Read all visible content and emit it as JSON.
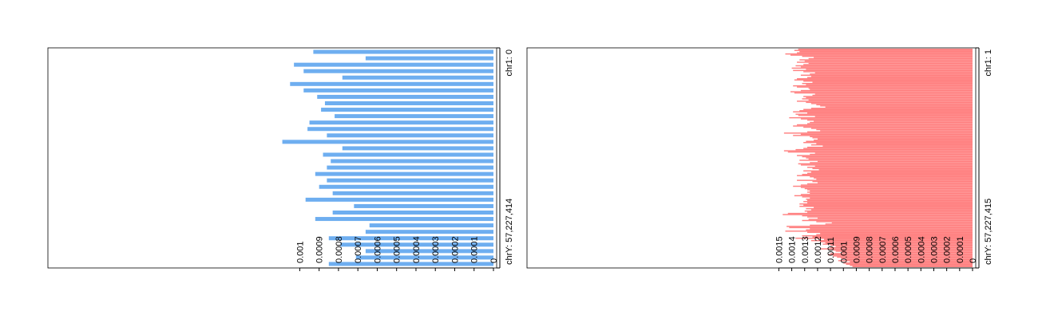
{
  "chart_data": [
    {
      "type": "bar",
      "orientation": "horizontal",
      "color": "#6eaef0",
      "range_labels": {
        "start": "chr1: 0",
        "end": "chrY: 57,227,414"
      },
      "xlim": [
        0,
        0.00108
      ],
      "ticks": [
        {
          "v": 0,
          "label": "0"
        },
        {
          "v": 0.0001,
          "label": "0.0001"
        },
        {
          "v": 0.0002,
          "label": "0.0002"
        },
        {
          "v": 0.0003,
          "label": "0.0003"
        },
        {
          "v": 0.0004,
          "label": "0.0004"
        },
        {
          "v": 0.0005,
          "label": "0.0005"
        },
        {
          "v": 0.0006,
          "label": "0.0006"
        },
        {
          "v": 0.0007,
          "label": "0.0007"
        },
        {
          "v": 0.0008,
          "label": "0.0008"
        },
        {
          "v": 0.0009,
          "label": "0.0009"
        },
        {
          "v": 0.001,
          "label": "0.001"
        }
      ],
      "values": [
        0.00093,
        0.00066,
        0.00103,
        0.00098,
        0.00078,
        0.00105,
        0.00098,
        0.00091,
        0.00087,
        0.00089,
        0.00082,
        0.00095,
        0.00096,
        0.00086,
        0.00109,
        0.00078,
        0.00088,
        0.00084,
        0.00086,
        0.00092,
        0.00086,
        0.0009,
        0.00083,
        0.00097,
        0.00072,
        0.00083,
        0.00092,
        0.00064,
        0.00066,
        0.00085,
        0.00079,
        0.00066,
        0.00071,
        0.00085
      ]
    },
    {
      "type": "bar",
      "orientation": "horizontal",
      "color": "#ff8080",
      "range_labels": {
        "start": "chr1: 1",
        "end": "chrY: 57,227,415"
      },
      "xlim": [
        0,
        0.00162
      ],
      "ticks": [
        {
          "v": 0,
          "label": "0"
        },
        {
          "v": 0.0001,
          "label": "0.0001"
        },
        {
          "v": 0.0002,
          "label": "0.0002"
        },
        {
          "v": 0.0003,
          "label": "0.0003"
        },
        {
          "v": 0.0004,
          "label": "0.0004"
        },
        {
          "v": 0.0005,
          "label": "0.0005"
        },
        {
          "v": 0.0006,
          "label": "0.0006"
        },
        {
          "v": 0.0007,
          "label": "0.0007"
        },
        {
          "v": 0.0008,
          "label": "0.0008"
        },
        {
          "v": 0.0009,
          "label": "0.0009"
        },
        {
          "v": 0.001,
          "label": "0.001"
        },
        {
          "v": 0.0011,
          "label": "0.0011"
        },
        {
          "v": 0.0012,
          "label": "0.0012"
        },
        {
          "v": 0.0013,
          "label": "0.0013"
        },
        {
          "v": 0.0014,
          "label": "0.0014"
        },
        {
          "v": 0.0015,
          "label": "0.0015"
        }
      ],
      "values": [
        0.00135,
        0.00138,
        0.00134,
        0.00136,
        0.00145,
        0.00141,
        0.00132,
        0.00123,
        0.00127,
        0.00134,
        0.0013,
        0.00136,
        0.00127,
        0.00131,
        0.00137,
        0.00133,
        0.0014,
        0.00129,
        0.00139,
        0.00131,
        0.00122,
        0.00126,
        0.00133,
        0.00125,
        0.00128,
        0.00136,
        0.00138,
        0.00131,
        0.00124,
        0.00132,
        0.00129,
        0.00139,
        0.00136,
        0.00127,
        0.00126,
        0.00133,
        0.00141,
        0.00138,
        0.00122,
        0.00124,
        0.00131,
        0.00129,
        0.00132,
        0.00127,
        0.00136,
        0.00129,
        0.00125,
        0.00121,
        0.00118,
        0.00114,
        0.00125,
        0.00131,
        0.00134,
        0.00139,
        0.00128,
        0.00137,
        0.00135,
        0.00122,
        0.00142,
        0.00133,
        0.00128,
        0.00123,
        0.00126,
        0.00128,
        0.00136,
        0.00139,
        0.00131,
        0.00125,
        0.00121,
        0.00118,
        0.00128,
        0.00146,
        0.00133,
        0.00139,
        0.00126,
        0.00124,
        0.0012,
        0.00123,
        0.00129,
        0.00131,
        0.00121,
        0.00125,
        0.00116,
        0.00128,
        0.00131,
        0.00137,
        0.00146,
        0.00143,
        0.00122,
        0.00126,
        0.00136,
        0.00132,
        0.00129,
        0.00127,
        0.00134,
        0.0012,
        0.00126,
        0.00135,
        0.00133,
        0.00122,
        0.00128,
        0.00124,
        0.00119,
        0.00131,
        0.00125,
        0.00128,
        0.00132,
        0.00136,
        0.00126,
        0.00123,
        0.00121,
        0.00136,
        0.00124,
        0.0012,
        0.00128,
        0.00133,
        0.00139,
        0.00133,
        0.0013,
        0.00128,
        0.00126,
        0.00128,
        0.00126,
        0.00133,
        0.00138,
        0.00132,
        0.00126,
        0.00129,
        0.00128,
        0.00131,
        0.00128,
        0.00134,
        0.00131,
        0.00134,
        0.00123,
        0.00129,
        0.00125,
        0.0013,
        0.00128,
        0.00143,
        0.00147,
        0.00132,
        0.00128,
        0.0012,
        0.00127,
        0.00132,
        0.00121,
        0.00109,
        0.00114,
        0.00126,
        0.00144,
        0.00142,
        0.00126,
        0.00129,
        0.00145,
        0.00128,
        0.00118,
        0.00121,
        0.00132,
        0.00124,
        0.00137,
        0.00115,
        0.00125,
        0.00118,
        0.00114,
        0.00116,
        0.0011,
        0.00106,
        0.0011,
        0.00118,
        0.00108,
        0.00106,
        0.00101,
        0.0011,
        0.00112,
        0.00108,
        0.00105,
        0.00102,
        0.00098,
        0.00104,
        0.00095,
        0.001,
        0.00098,
        0.00095,
        0.00093
      ]
    }
  ]
}
